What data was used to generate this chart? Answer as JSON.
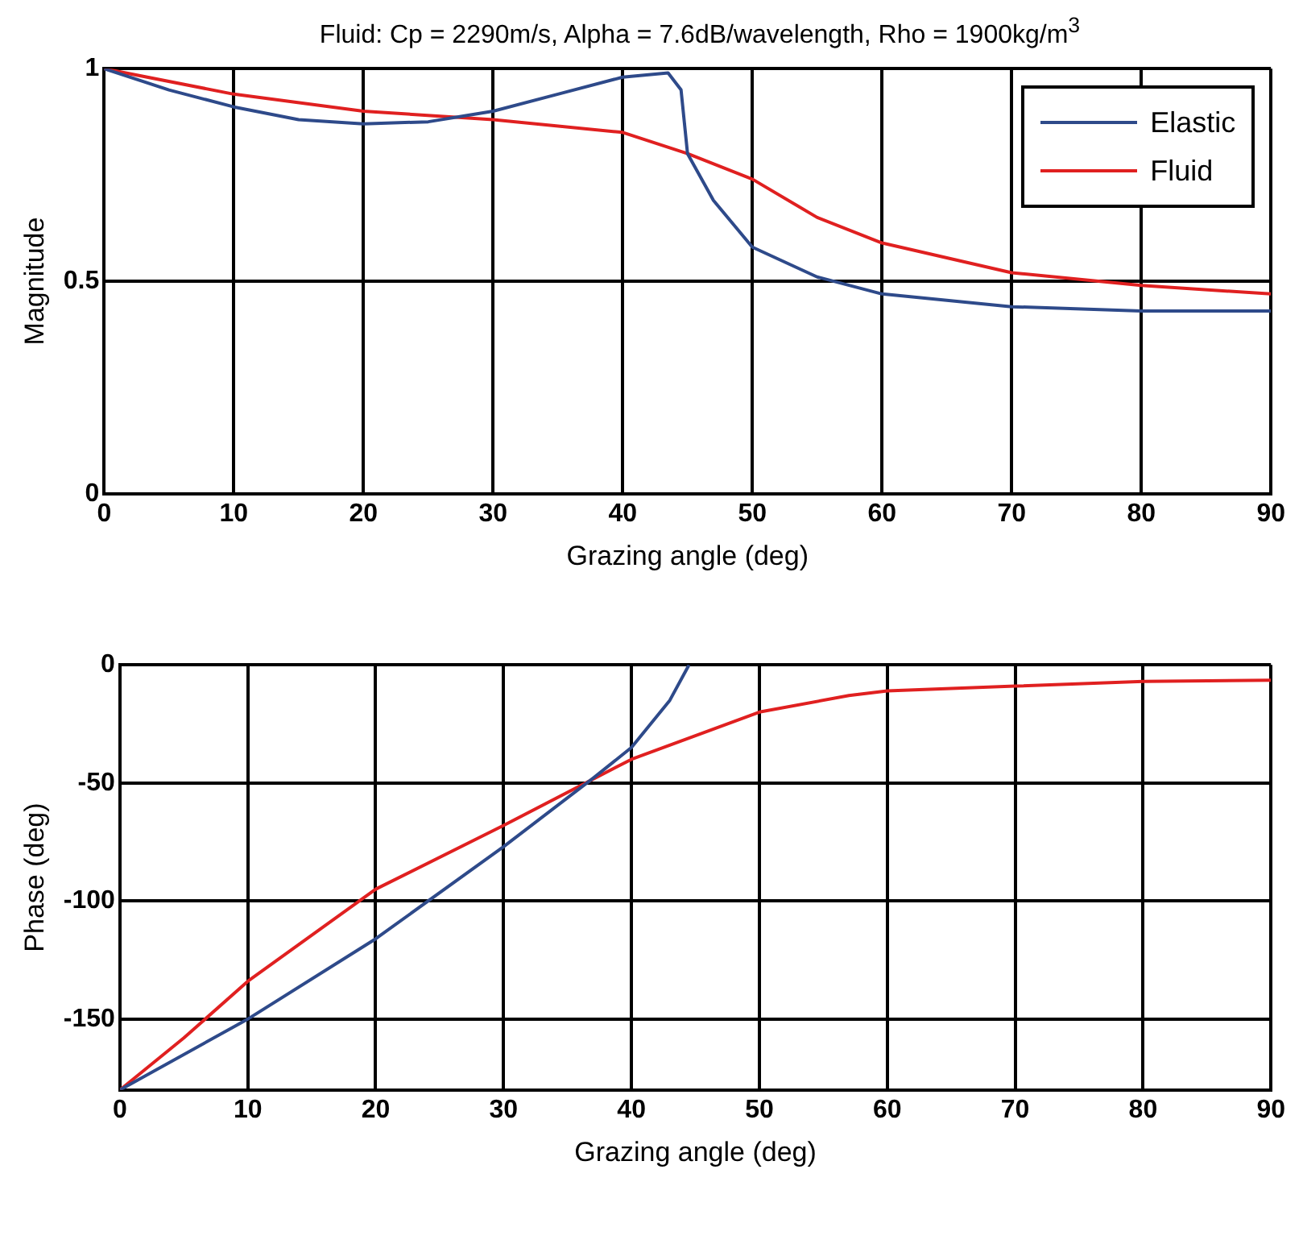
{
  "chart_data": [
    {
      "type": "line",
      "title": "Fluid: Cp = 2290m/s, Alpha = 7.6dB/wavelength, Rho = 1900kg/m$^{3}$",
      "xlabel": "Grazing angle (deg)",
      "ylabel": "Magnitude",
      "xlim": [
        0,
        90
      ],
      "xticks": [
        0,
        10,
        20,
        30,
        40,
        50,
        60,
        70,
        80,
        90
      ],
      "ylim": [
        0,
        1
      ],
      "yticks": [
        0,
        0.5,
        1
      ],
      "grid": true,
      "legend": "top right",
      "marker": "none",
      "line_style": "solid",
      "series": [
        {
          "name": "Elastic",
          "color": "#2e4a8a",
          "x": [
            0,
            5,
            10,
            15,
            20,
            25,
            28,
            30,
            35,
            40,
            43.5,
            44.5,
            45,
            47,
            50,
            55,
            60,
            70,
            80,
            90
          ],
          "values": [
            1.0,
            0.95,
            0.91,
            0.88,
            0.87,
            0.875,
            0.89,
            0.9,
            0.94,
            0.98,
            0.99,
            0.95,
            0.8,
            0.69,
            0.58,
            0.51,
            0.47,
            0.44,
            0.43,
            0.43
          ]
        },
        {
          "name": "Fluid",
          "color": "#e02020",
          "x": [
            0,
            10,
            20,
            30,
            40,
            45,
            50,
            55,
            60,
            70,
            80,
            90
          ],
          "values": [
            1.0,
            0.94,
            0.9,
            0.88,
            0.85,
            0.8,
            0.74,
            0.65,
            0.59,
            0.52,
            0.49,
            0.47
          ]
        }
      ]
    },
    {
      "type": "line",
      "xlabel": "Grazing angle (deg)",
      "ylabel": "Phase (deg)",
      "xlim": [
        0,
        90
      ],
      "xticks": [
        0,
        10,
        20,
        30,
        40,
        50,
        60,
        70,
        80,
        90
      ],
      "ylim": [
        -180,
        0
      ],
      "yticks": [
        -150,
        -100,
        -50,
        0
      ],
      "grid": true,
      "marker": "none",
      "line_style": "solid",
      "series": [
        {
          "color": "#2e4a8a",
          "x": [
            0,
            10,
            20,
            30,
            37,
            40,
            43,
            44.5
          ],
          "values": [
            -180,
            -150,
            -116,
            -77,
            -48,
            -35,
            -15,
            0
          ]
        },
        {
          "color": "#e02020",
          "x": [
            0,
            5,
            10,
            20,
            30,
            40,
            50,
            57,
            60,
            70,
            80,
            90
          ],
          "values": [
            -180,
            -158,
            -134,
            -95,
            -68,
            -40,
            -20,
            -13,
            -11,
            -9,
            -7,
            -6.5
          ]
        }
      ]
    }
  ]
}
